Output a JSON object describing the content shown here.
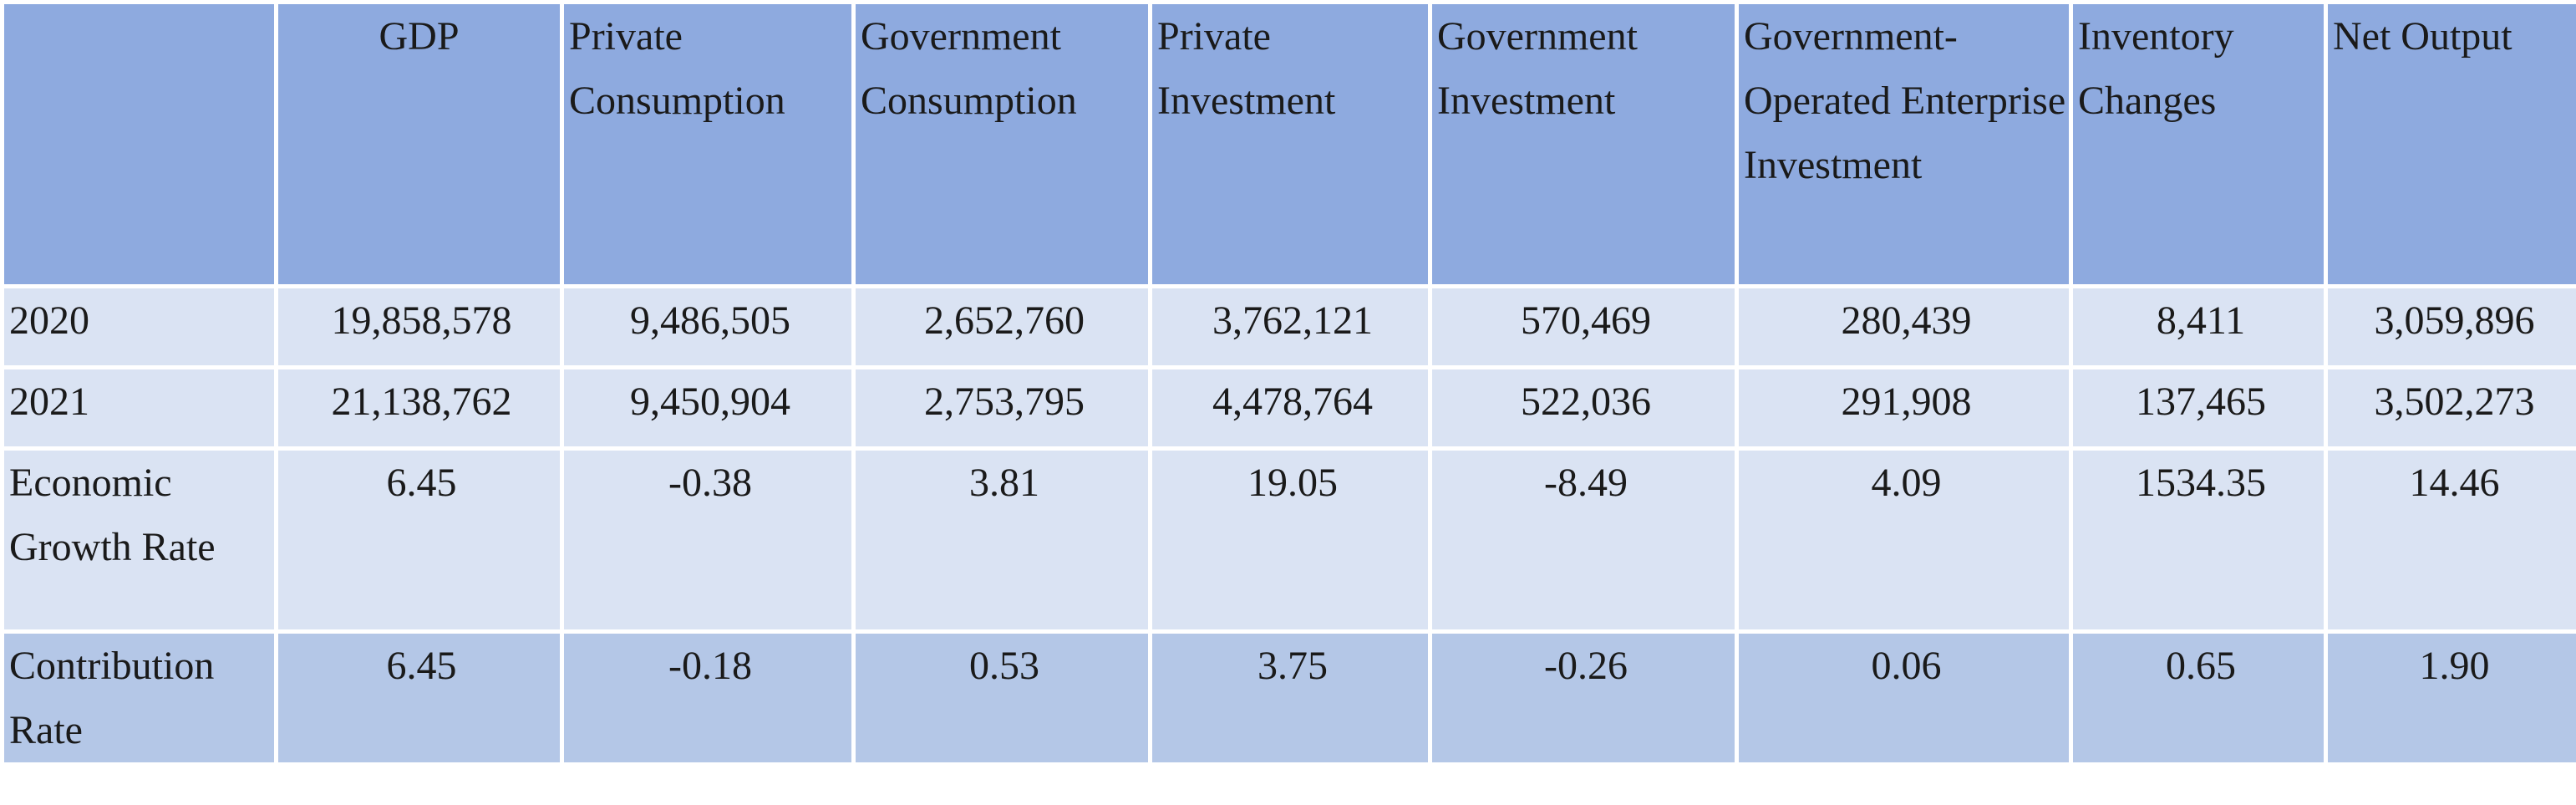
{
  "table": {
    "headers": [
      "",
      "GDP",
      "Private Consumption",
      "Government Consumption",
      "Private Investment",
      "Government Investment",
      "Government-Operated Enterprise Investment",
      "Inventory Changes",
      "Net Output"
    ],
    "rows": [
      {
        "label": "2020",
        "values": [
          "19,858,578",
          "9,486,505",
          "2,652,760",
          "3,762,121",
          "570,469",
          "280,439",
          "8,411",
          "3,059,896"
        ]
      },
      {
        "label": "2021",
        "values": [
          "21,138,762",
          "9,450,904",
          "2,753,795",
          "4,478,764",
          "522,036",
          "291,908",
          "137,465",
          "3,502,273"
        ]
      },
      {
        "label": "Economic Growth Rate",
        "values": [
          "6.45",
          "-0.38",
          "3.81",
          "19.05",
          "-8.49",
          "4.09",
          "1534.35",
          "14.46"
        ]
      },
      {
        "label": "Contribution Rate",
        "values": [
          "6.45",
          "-0.18",
          "0.53",
          "3.75",
          "-0.26",
          "0.06",
          "0.65",
          "1.90"
        ]
      }
    ]
  },
  "colors": {
    "header_bg": "#8eaadf",
    "row_light": "#dae3f3",
    "row_dark": "#b4c7e7",
    "grid_line": "#ffffff"
  }
}
